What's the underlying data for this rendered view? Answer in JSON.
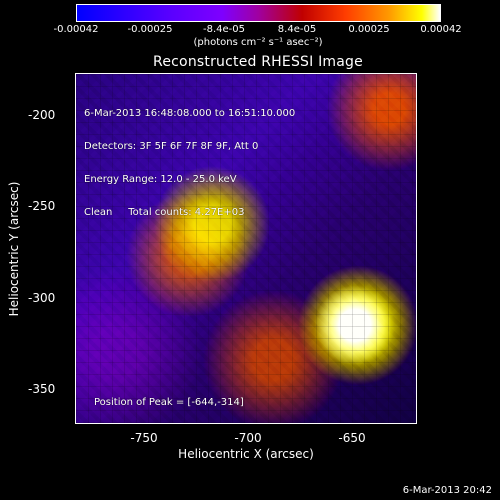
{
  "colorbar": {
    "ticks": [
      "-0.00042",
      "-0.00025",
      "-8.4e-05",
      "8.4e-05",
      "0.00025",
      "0.00042"
    ],
    "units": "(photons cm⁻² s⁻¹ asec⁻²)"
  },
  "plot": {
    "title": "Reconstructed RHESSI Image",
    "overlay_lines": [
      "6-Mar-2013 16:48:08.000 to 16:51:10.000",
      "Detectors: 3F 5F 6F 7F 8F 9F, Att 0",
      "Energy Range: 12.0 - 25.0 keV",
      "Clean     Total counts: 4.27E+03"
    ],
    "peak": "Position of Peak = [-644,-314]",
    "x_label": "Heliocentric X (arcsec)",
    "y_label": "Heliocentric Y (arcsec)",
    "x_ticks": [
      "-750",
      "-700",
      "-650"
    ],
    "y_ticks": [
      "-200",
      "-250",
      "-300",
      "-350"
    ]
  },
  "footer": {
    "timestamp": "6-Mar-2013 20:42"
  }
}
